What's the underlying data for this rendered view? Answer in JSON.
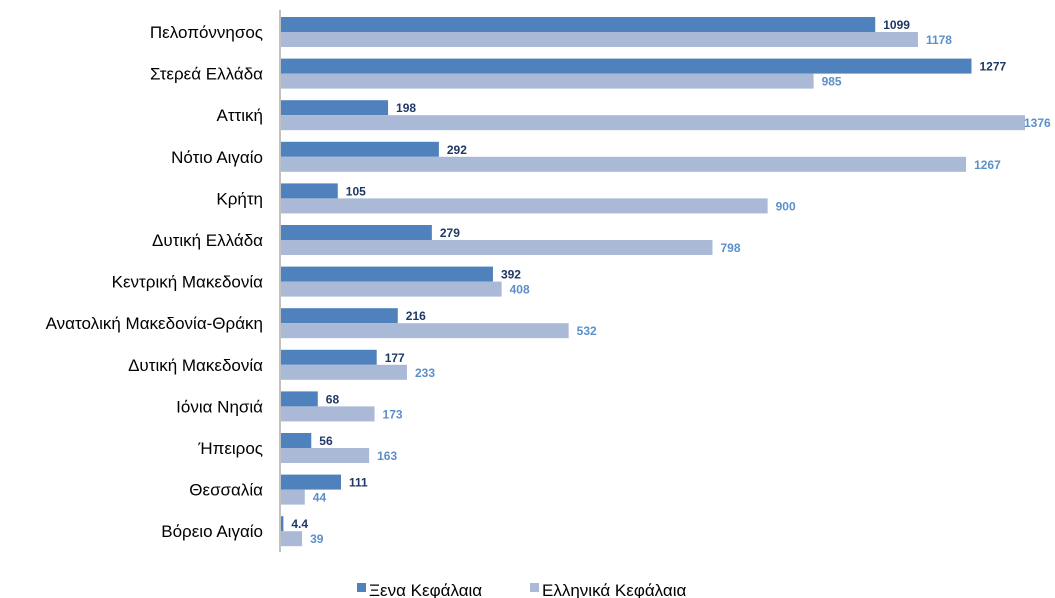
{
  "chart_data": {
    "type": "bar",
    "orientation": "horizontal",
    "categories": [
      "Πελοπόννησος",
      "Στερεά Ελλάδα",
      "Αττική",
      "Νότιο Αιγαίο",
      "Κρήτη",
      "Δυτική Ελλάδα",
      "Κεντρική Μακεδονία",
      "Ανατολική Μακεδονία-Θράκη",
      "Δυτική Μακεδονία",
      "Ιόνια Νησιά",
      "Ήπειρος",
      "Θεσσαλία",
      "Βόρειο Αιγαίο"
    ],
    "series": [
      {
        "name": "Ξενα Κεφάλαια",
        "color": "#4f81bd",
        "label_color": "#1f3864",
        "values": [
          1099,
          1277,
          198,
          292,
          105,
          279,
          392,
          216,
          177,
          68,
          56,
          111,
          4.4
        ],
        "labels": [
          "1099",
          "1277",
          "198",
          "292",
          "105",
          "279",
          "392",
          "216",
          "177",
          "68",
          "56",
          "111",
          "4.4"
        ]
      },
      {
        "name": "Ελληνικά Κεφάλαια",
        "color": "#aab9d6",
        "label_color": "#5b8fc9",
        "values": [
          1178,
          985,
          1376,
          1267,
          900,
          798,
          408,
          532,
          233,
          173,
          163,
          44,
          39
        ],
        "labels": [
          "1178",
          "985",
          "1376",
          "1267",
          "900",
          "798",
          "408",
          "532",
          "233",
          "173",
          "163",
          "44",
          "39"
        ]
      }
    ],
    "title": "",
    "xlabel": "",
    "ylabel": "",
    "xlim": [
      0,
      1376
    ],
    "grid": false,
    "legend_position": "bottom"
  }
}
